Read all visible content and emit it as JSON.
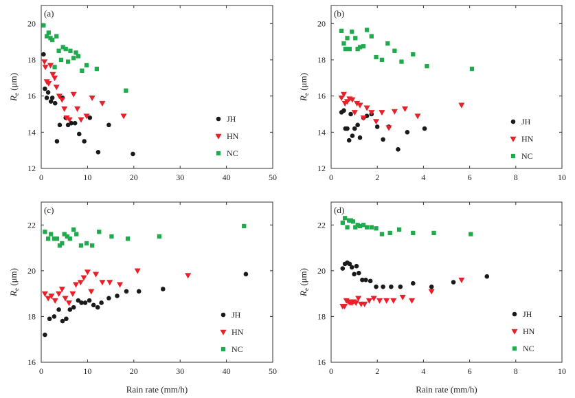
{
  "colors": {
    "JH": "#1a1a1a",
    "HN": "#e8202a",
    "NC": "#1faa4d"
  },
  "shared": {
    "xlabel": "Rain rate (mm/h)",
    "ylabel_main": "R",
    "ylabel_sub": "e",
    "ylabel_unit": " (μm)"
  },
  "chart_data": [
    {
      "panel": "(a)",
      "type": "scatter",
      "xlim": [
        0,
        50
      ],
      "ylim": [
        12,
        21
      ],
      "xticks": [
        0,
        10,
        20,
        30,
        40,
        50
      ],
      "yticks": [
        12,
        14,
        16,
        18,
        20
      ],
      "series": [
        {
          "name": "JH",
          "marker": "circle",
          "points": [
            [
              0.5,
              18.3
            ],
            [
              0.8,
              16.4
            ],
            [
              1.2,
              15.9
            ],
            [
              1.5,
              16.2
            ],
            [
              2.1,
              15.7
            ],
            [
              2.4,
              15.9
            ],
            [
              3.0,
              15.6
            ],
            [
              3.4,
              13.5
            ],
            [
              4.0,
              14.4
            ],
            [
              4.6,
              15.9
            ],
            [
              5.3,
              14.8
            ],
            [
              5.8,
              14.4
            ],
            [
              6.5,
              14.5
            ],
            [
              7.3,
              14.5
            ],
            [
              8.2,
              13.9
            ],
            [
              9.3,
              13.5
            ],
            [
              10.5,
              14.8
            ],
            [
              12.3,
              12.9
            ],
            [
              14.6,
              14.4
            ],
            [
              19.8,
              12.8
            ]
          ]
        },
        {
          "name": "HN",
          "marker": "triangle",
          "points": [
            [
              0.7,
              17.9
            ],
            [
              0.9,
              17.6
            ],
            [
              1.2,
              16.8
            ],
            [
              1.6,
              16.7
            ],
            [
              2.0,
              17.7
            ],
            [
              2.5,
              17.2
            ],
            [
              2.9,
              17.0
            ],
            [
              3.3,
              16.5
            ],
            [
              3.9,
              16.0
            ],
            [
              4.5,
              15.8
            ],
            [
              5.0,
              15.3
            ],
            [
              5.5,
              14.8
            ],
            [
              6.1,
              14.7
            ],
            [
              7.0,
              16.1
            ],
            [
              7.8,
              15.3
            ],
            [
              8.6,
              14.7
            ],
            [
              9.8,
              14.9
            ],
            [
              11.0,
              15.9
            ],
            [
              13.2,
              15.6
            ],
            [
              17.8,
              14.9
            ]
          ]
        },
        {
          "name": "NC",
          "marker": "square",
          "points": [
            [
              0.5,
              19.9
            ],
            [
              1.2,
              19.3
            ],
            [
              1.6,
              19.5
            ],
            [
              2.0,
              19.2
            ],
            [
              2.4,
              19.1
            ],
            [
              2.9,
              17.6
            ],
            [
              3.3,
              19.3
            ],
            [
              3.8,
              18.5
            ],
            [
              4.3,
              18.0
            ],
            [
              4.7,
              18.7
            ],
            [
              5.3,
              18.6
            ],
            [
              5.8,
              17.9
            ],
            [
              6.3,
              18.5
            ],
            [
              7.0,
              18.1
            ],
            [
              7.5,
              18.4
            ],
            [
              8.0,
              18.2
            ],
            [
              8.8,
              17.4
            ],
            [
              9.8,
              17.7
            ],
            [
              12.0,
              17.5
            ],
            [
              18.3,
              16.3
            ]
          ]
        }
      ]
    },
    {
      "panel": "(b)",
      "type": "scatter",
      "xlim": [
        0,
        10
      ],
      "ylim": [
        12,
        21
      ],
      "xticks": [
        0,
        2,
        4,
        6,
        8,
        10
      ],
      "yticks": [
        12,
        14,
        16,
        18,
        20
      ],
      "series": [
        {
          "name": "JH",
          "marker": "circle",
          "points": [
            [
              0.45,
              15.1
            ],
            [
              0.55,
              15.2
            ],
            [
              0.62,
              14.2
            ],
            [
              0.7,
              14.2
            ],
            [
              0.78,
              13.55
            ],
            [
              0.85,
              15.0
            ],
            [
              0.92,
              13.8
            ],
            [
              1.02,
              14.2
            ],
            [
              1.15,
              14.4
            ],
            [
              1.25,
              13.7
            ],
            [
              1.4,
              14.8
            ],
            [
              1.55,
              14.9
            ],
            [
              1.75,
              15.0
            ],
            [
              2.0,
              14.3
            ],
            [
              2.25,
              13.6
            ],
            [
              2.5,
              14.3
            ],
            [
              2.9,
              13.05
            ],
            [
              3.3,
              14.0
            ],
            [
              4.05,
              14.2
            ]
          ]
        },
        {
          "name": "HN",
          "marker": "triangle",
          "points": [
            [
              0.45,
              15.9
            ],
            [
              0.55,
              16.1
            ],
            [
              0.6,
              15.6
            ],
            [
              0.7,
              15.7
            ],
            [
              0.8,
              15.85
            ],
            [
              0.92,
              15.8
            ],
            [
              1.02,
              15.1
            ],
            [
              1.12,
              15.6
            ],
            [
              1.25,
              15.5
            ],
            [
              1.4,
              14.8
            ],
            [
              1.55,
              15.35
            ],
            [
              1.75,
              15.1
            ],
            [
              1.95,
              14.6
            ],
            [
              2.2,
              15.1
            ],
            [
              2.5,
              14.25
            ],
            [
              2.75,
              15.15
            ],
            [
              3.2,
              15.3
            ],
            [
              3.75,
              14.9
            ],
            [
              5.65,
              15.5
            ]
          ]
        },
        {
          "name": "NC",
          "marker": "square",
          "points": [
            [
              0.45,
              19.6
            ],
            [
              0.55,
              18.9
            ],
            [
              0.62,
              18.6
            ],
            [
              0.7,
              19.2
            ],
            [
              0.8,
              18.6
            ],
            [
              0.9,
              19.55
            ],
            [
              1.05,
              19.2
            ],
            [
              1.15,
              18.6
            ],
            [
              1.25,
              18.7
            ],
            [
              1.4,
              18.75
            ],
            [
              1.55,
              19.65
            ],
            [
              1.75,
              19.3
            ],
            [
              1.95,
              18.15
            ],
            [
              2.2,
              18.0
            ],
            [
              2.45,
              18.9
            ],
            [
              2.75,
              18.5
            ],
            [
              3.05,
              17.9
            ],
            [
              3.55,
              18.3
            ],
            [
              4.15,
              17.65
            ],
            [
              6.1,
              17.5
            ]
          ]
        }
      ]
    },
    {
      "panel": "(c)",
      "type": "scatter",
      "xlim": [
        0,
        50
      ],
      "ylim": [
        16,
        23
      ],
      "xticks": [
        0,
        10,
        20,
        30,
        40,
        50
      ],
      "yticks": [
        16,
        18,
        20,
        22
      ],
      "series": [
        {
          "name": "JH",
          "marker": "circle",
          "points": [
            [
              0.8,
              17.2
            ],
            [
              1.8,
              17.9
            ],
            [
              2.8,
              18.0
            ],
            [
              3.8,
              18.3
            ],
            [
              4.6,
              17.8
            ],
            [
              5.4,
              17.9
            ],
            [
              6.2,
              18.3
            ],
            [
              7.0,
              18.4
            ],
            [
              8.0,
              18.7
            ],
            [
              8.7,
              18.6
            ],
            [
              9.5,
              18.6
            ],
            [
              10.4,
              18.7
            ],
            [
              11.3,
              18.5
            ],
            [
              12.2,
              18.4
            ],
            [
              13.0,
              18.6
            ],
            [
              14.6,
              18.8
            ],
            [
              16.4,
              18.9
            ],
            [
              18.4,
              19.1
            ],
            [
              21.1,
              19.1
            ],
            [
              26.3,
              19.2
            ],
            [
              44.2,
              19.85
            ]
          ]
        },
        {
          "name": "HN",
          "marker": "triangle",
          "points": [
            [
              0.8,
              19.0
            ],
            [
              1.5,
              18.8
            ],
            [
              2.2,
              18.9
            ],
            [
              3.0,
              18.7
            ],
            [
              3.8,
              19.0
            ],
            [
              4.5,
              19.2
            ],
            [
              5.2,
              18.8
            ],
            [
              6.0,
              18.6
            ],
            [
              6.8,
              19.0
            ],
            [
              7.5,
              19.4
            ],
            [
              8.5,
              19.5
            ],
            [
              9.2,
              19.7
            ],
            [
              10.0,
              19.95
            ],
            [
              10.8,
              19.1
            ],
            [
              11.8,
              19.85
            ],
            [
              13.2,
              19.5
            ],
            [
              14.8,
              19.5
            ],
            [
              17.0,
              19.4
            ],
            [
              20.8,
              20.0
            ],
            [
              31.7,
              19.8
            ]
          ]
        },
        {
          "name": "NC",
          "marker": "square",
          "points": [
            [
              0.8,
              21.7
            ],
            [
              1.5,
              21.4
            ],
            [
              2.1,
              21.6
            ],
            [
              2.8,
              21.4
            ],
            [
              3.4,
              21.4
            ],
            [
              4.0,
              21.1
            ],
            [
              4.5,
              21.2
            ],
            [
              5.0,
              21.6
            ],
            [
              5.6,
              21.5
            ],
            [
              6.2,
              21.4
            ],
            [
              7.0,
              21.8
            ],
            [
              7.6,
              21.6
            ],
            [
              8.6,
              21.1
            ],
            [
              9.8,
              21.2
            ],
            [
              11.0,
              21.1
            ],
            [
              12.5,
              21.7
            ],
            [
              15.2,
              21.5
            ],
            [
              18.7,
              21.4
            ],
            [
              25.5,
              21.5
            ],
            [
              43.8,
              21.95
            ]
          ]
        }
      ]
    },
    {
      "panel": "(d)",
      "type": "scatter",
      "xlim": [
        0,
        10
      ],
      "ylim": [
        16,
        23
      ],
      "xticks": [
        0,
        2,
        4,
        6,
        8,
        10
      ],
      "yticks": [
        16,
        18,
        20,
        22
      ],
      "series": [
        {
          "name": "JH",
          "marker": "circle",
          "points": [
            [
              0.5,
              20.1
            ],
            [
              0.6,
              20.3
            ],
            [
              0.7,
              20.35
            ],
            [
              0.8,
              20.3
            ],
            [
              0.9,
              20.15
            ],
            [
              1.0,
              19.85
            ],
            [
              1.1,
              20.2
            ],
            [
              1.2,
              19.9
            ],
            [
              1.35,
              19.6
            ],
            [
              1.5,
              19.6
            ],
            [
              1.7,
              19.55
            ],
            [
              1.95,
              19.3
            ],
            [
              2.25,
              19.3
            ],
            [
              2.6,
              19.3
            ],
            [
              3.0,
              19.3
            ],
            [
              3.55,
              19.45
            ],
            [
              4.35,
              19.3
            ],
            [
              5.3,
              19.5
            ],
            [
              6.75,
              19.75
            ]
          ]
        },
        {
          "name": "HN",
          "marker": "triangle",
          "points": [
            [
              0.5,
              18.45
            ],
            [
              0.58,
              18.45
            ],
            [
              0.66,
              18.7
            ],
            [
              0.74,
              18.65
            ],
            [
              0.82,
              18.6
            ],
            [
              0.9,
              18.6
            ],
            [
              0.98,
              18.65
            ],
            [
              1.08,
              18.6
            ],
            [
              1.18,
              18.8
            ],
            [
              1.3,
              18.55
            ],
            [
              1.45,
              18.55
            ],
            [
              1.65,
              18.7
            ],
            [
              1.85,
              18.8
            ],
            [
              2.1,
              18.7
            ],
            [
              2.4,
              18.7
            ],
            [
              2.7,
              18.7
            ],
            [
              3.1,
              18.85
            ],
            [
              3.5,
              18.7
            ],
            [
              4.35,
              19.1
            ],
            [
              5.65,
              19.6
            ]
          ]
        },
        {
          "name": "NC",
          "marker": "square",
          "points": [
            [
              0.5,
              22.1
            ],
            [
              0.6,
              22.3
            ],
            [
              0.7,
              21.9
            ],
            [
              0.78,
              22.2
            ],
            [
              0.86,
              22.2
            ],
            [
              0.95,
              22.15
            ],
            [
              1.05,
              21.9
            ],
            [
              1.15,
              22.0
            ],
            [
              1.25,
              21.95
            ],
            [
              1.4,
              22.0
            ],
            [
              1.55,
              21.9
            ],
            [
              1.75,
              21.9
            ],
            [
              1.95,
              21.85
            ],
            [
              2.2,
              21.6
            ],
            [
              2.55,
              21.65
            ],
            [
              2.95,
              21.8
            ],
            [
              3.55,
              21.65
            ],
            [
              4.45,
              21.65
            ],
            [
              6.05,
              21.6
            ]
          ]
        }
      ]
    }
  ]
}
